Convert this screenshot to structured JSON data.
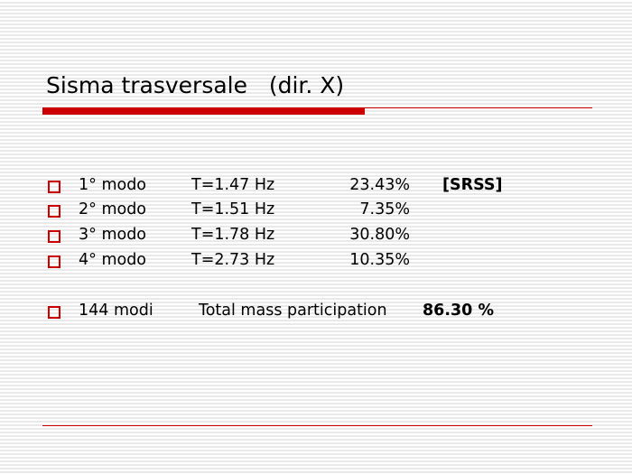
{
  "title": "Sisma trasversale   (dir. X)",
  "accent_color": "#cc0000",
  "modes": [
    {
      "label": "1° modo",
      "freq": "T=1.47 Hz",
      "participation": "23.43%",
      "note": "[SRSS]"
    },
    {
      "label": "2° modo",
      "freq": "T=1.51 Hz",
      "participation": "7.35%"
    },
    {
      "label": "3° modo",
      "freq": "T=1.78 Hz",
      "participation": "30.80%"
    },
    {
      "label": "4° modo",
      "freq": "T=2.73 Hz",
      "participation": "10.35%"
    }
  ],
  "summary": {
    "label": "144 modi",
    "text": "Total mass participation",
    "value": "86.30 %"
  }
}
